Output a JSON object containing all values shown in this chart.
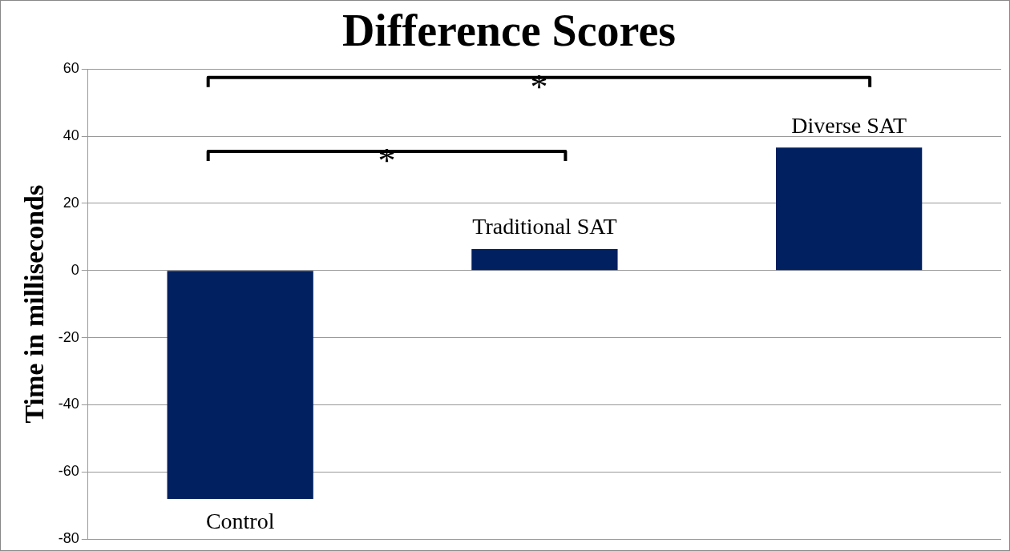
{
  "chart_data": {
    "type": "bar",
    "title": "Difference Scores",
    "ylabel": "Time in milliseconds",
    "categories": [
      "Control",
      "Traditional SAT",
      "Diverse SAT"
    ],
    "values": [
      -68,
      6.4,
      36.6
    ],
    "color": "#002060",
    "ylim": [
      -80,
      60
    ],
    "yticks": [
      -80,
      -60,
      -40,
      -20,
      0,
      20,
      40,
      60
    ],
    "grid": "y",
    "tick_labels": "y",
    "annotations": [
      "*",
      "*"
    ]
  }
}
